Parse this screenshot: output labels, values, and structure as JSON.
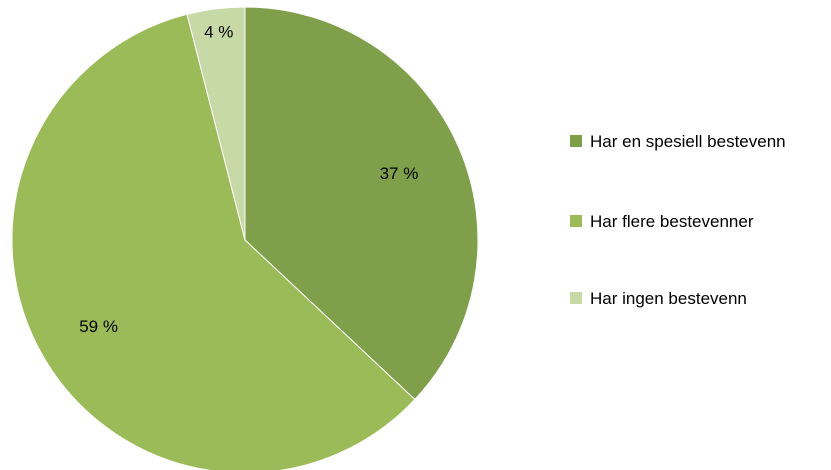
{
  "chart_data": {
    "type": "pie",
    "categories": [
      "Har en spesiell bestevenn",
      "Har flere bestevenner",
      "Har ingen bestevenn"
    ],
    "values": [
      37,
      59,
      4
    ],
    "value_labels": [
      "37 %",
      "59 %",
      "4 %"
    ],
    "colors": [
      "#7f9f4a",
      "#9bbb59",
      "#c7d9a6"
    ],
    "legend_position": "right",
    "start_angle": "12 o'clock, clockwise"
  }
}
